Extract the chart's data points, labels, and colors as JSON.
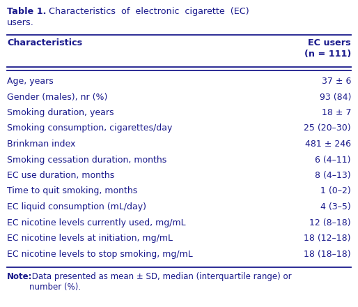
{
  "title_bold": "Table 1.",
  "title_line1_rest": "  Characteristics  of  electronic  cigarette  (EC)",
  "title_line2": "users.",
  "col1_header": "Characteristics",
  "col2_header_line1": "EC users",
  "col2_header_line2": "(n = 111)",
  "rows": [
    [
      "Age, years",
      "37 ± 6"
    ],
    [
      "Gender (males), nr (%)",
      "93 (84)"
    ],
    [
      "Smoking duration, years",
      "18 ± 7"
    ],
    [
      "Smoking consumption, cigarettes/day",
      "25 (20–30)"
    ],
    [
      "Brinkman index",
      "481 ± 246"
    ],
    [
      "Smoking cessation duration, months",
      "6 (4–11)"
    ],
    [
      "EC use duration, months",
      "8 (4–13)"
    ],
    [
      "Time to quit smoking, months",
      "1 (0–2)"
    ],
    [
      "EC liquid consumption (mL/day)",
      "4 (3–5)"
    ],
    [
      "EC nicotine levels currently used, mg/mL",
      "12 (8–18)"
    ],
    [
      "EC nicotine levels at initiation, mg/mL",
      "18 (12–18)"
    ],
    [
      "EC nicotine levels to stop smoking, mg/mL",
      "18 (18–18)"
    ]
  ],
  "note_bold": "Note:",
  "note_rest": " Data presented as mean ± SD, median (interquartile range) or\nnumber (%).",
  "bg_color": "#ffffff",
  "text_color": "#1a1a8c",
  "font_size": 9.0,
  "title_font_size": 9.2,
  "note_font_size": 8.5
}
